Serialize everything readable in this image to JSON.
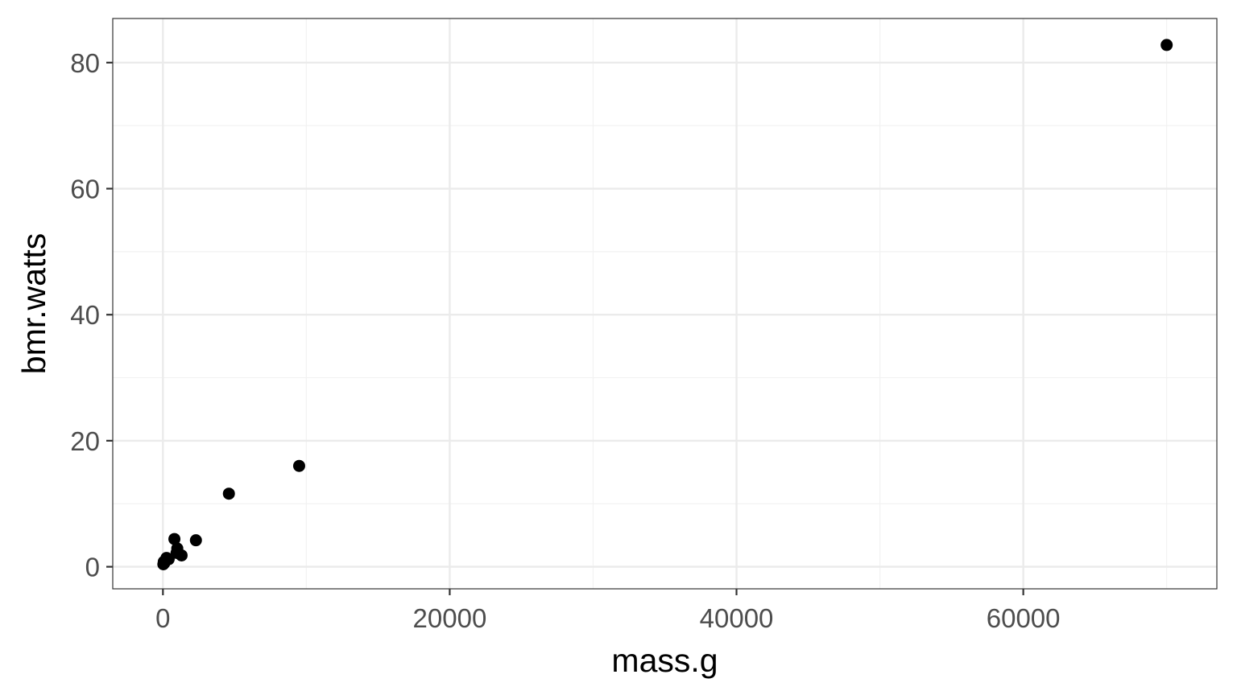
{
  "chart_data": {
    "type": "scatter",
    "title": "",
    "xlabel": "mass.g",
    "ylabel": "bmr.watts",
    "xlim": [
      -3500,
      73500
    ],
    "ylim": [
      -3.5,
      87
    ],
    "x_ticks": [
      0,
      20000,
      40000,
      60000
    ],
    "x_tick_labels": [
      "0",
      "20000",
      "40000",
      "60000"
    ],
    "x_minor_ticks": [
      10000,
      30000,
      50000,
      70000
    ],
    "y_ticks": [
      0,
      20,
      40,
      60,
      80
    ],
    "y_tick_labels": [
      "0",
      "20",
      "40",
      "60",
      "80"
    ],
    "y_minor_ticks": [
      10,
      30,
      50,
      70
    ],
    "grid": true,
    "legend": "none",
    "point_color": "#000000",
    "points": [
      {
        "x": 70000,
        "y": 82.8
      },
      {
        "x": 9500,
        "y": 16.0
      },
      {
        "x": 4600,
        "y": 11.6
      },
      {
        "x": 2300,
        "y": 4.2
      },
      {
        "x": 800,
        "y": 4.4
      },
      {
        "x": 1000,
        "y": 2.9
      },
      {
        "x": 1300,
        "y": 1.8
      },
      {
        "x": 950,
        "y": 2.2
      },
      {
        "x": 250,
        "y": 1.4
      },
      {
        "x": 200,
        "y": 1.0
      },
      {
        "x": 100,
        "y": 0.6
      },
      {
        "x": 30,
        "y": 0.4
      },
      {
        "x": 60,
        "y": 0.8
      },
      {
        "x": 400,
        "y": 1.2
      }
    ]
  }
}
